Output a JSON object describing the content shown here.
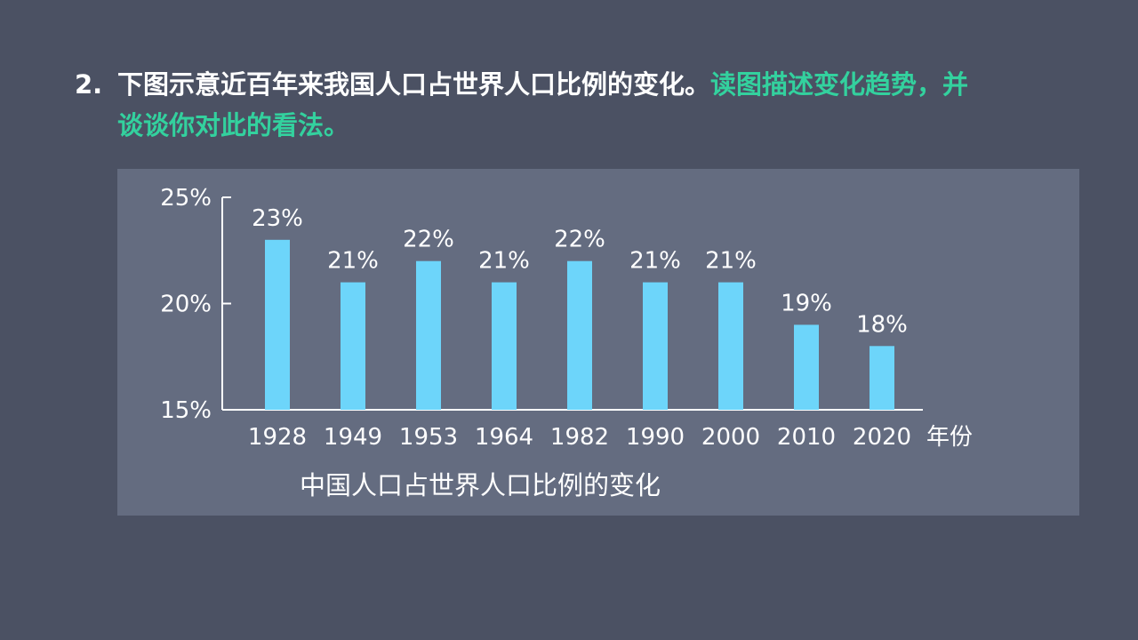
{
  "question": {
    "number": "2.",
    "text_main": "下图示意近百年来我国人口占世界人口比例的变化。",
    "text_highlight_1": "读图描述变化趋势，并",
    "text_highlight_2": "谈谈你对此的看法。"
  },
  "colors": {
    "background": "#4b5163",
    "panel": "#646c80",
    "bar": "#6dd5fa",
    "highlight": "#33d19e"
  },
  "chart_data": {
    "type": "bar",
    "title": "中国人口占世界人口比例的变化",
    "xlabel": "年份",
    "ylabel": "",
    "categories": [
      "1928",
      "1949",
      "1953",
      "1964",
      "1982",
      "1990",
      "2000",
      "2010",
      "2020"
    ],
    "values": [
      23,
      21,
      22,
      21,
      22,
      21,
      21,
      19,
      18
    ],
    "value_labels": [
      "23%",
      "21%",
      "22%",
      "21%",
      "22%",
      "21%",
      "21%",
      "19%",
      "18%"
    ],
    "ylim": [
      15,
      25
    ],
    "yticks": [
      15,
      20,
      25
    ],
    "ytick_labels": [
      "15%",
      "20%",
      "25%"
    ],
    "grid": false,
    "legend": "none"
  }
}
